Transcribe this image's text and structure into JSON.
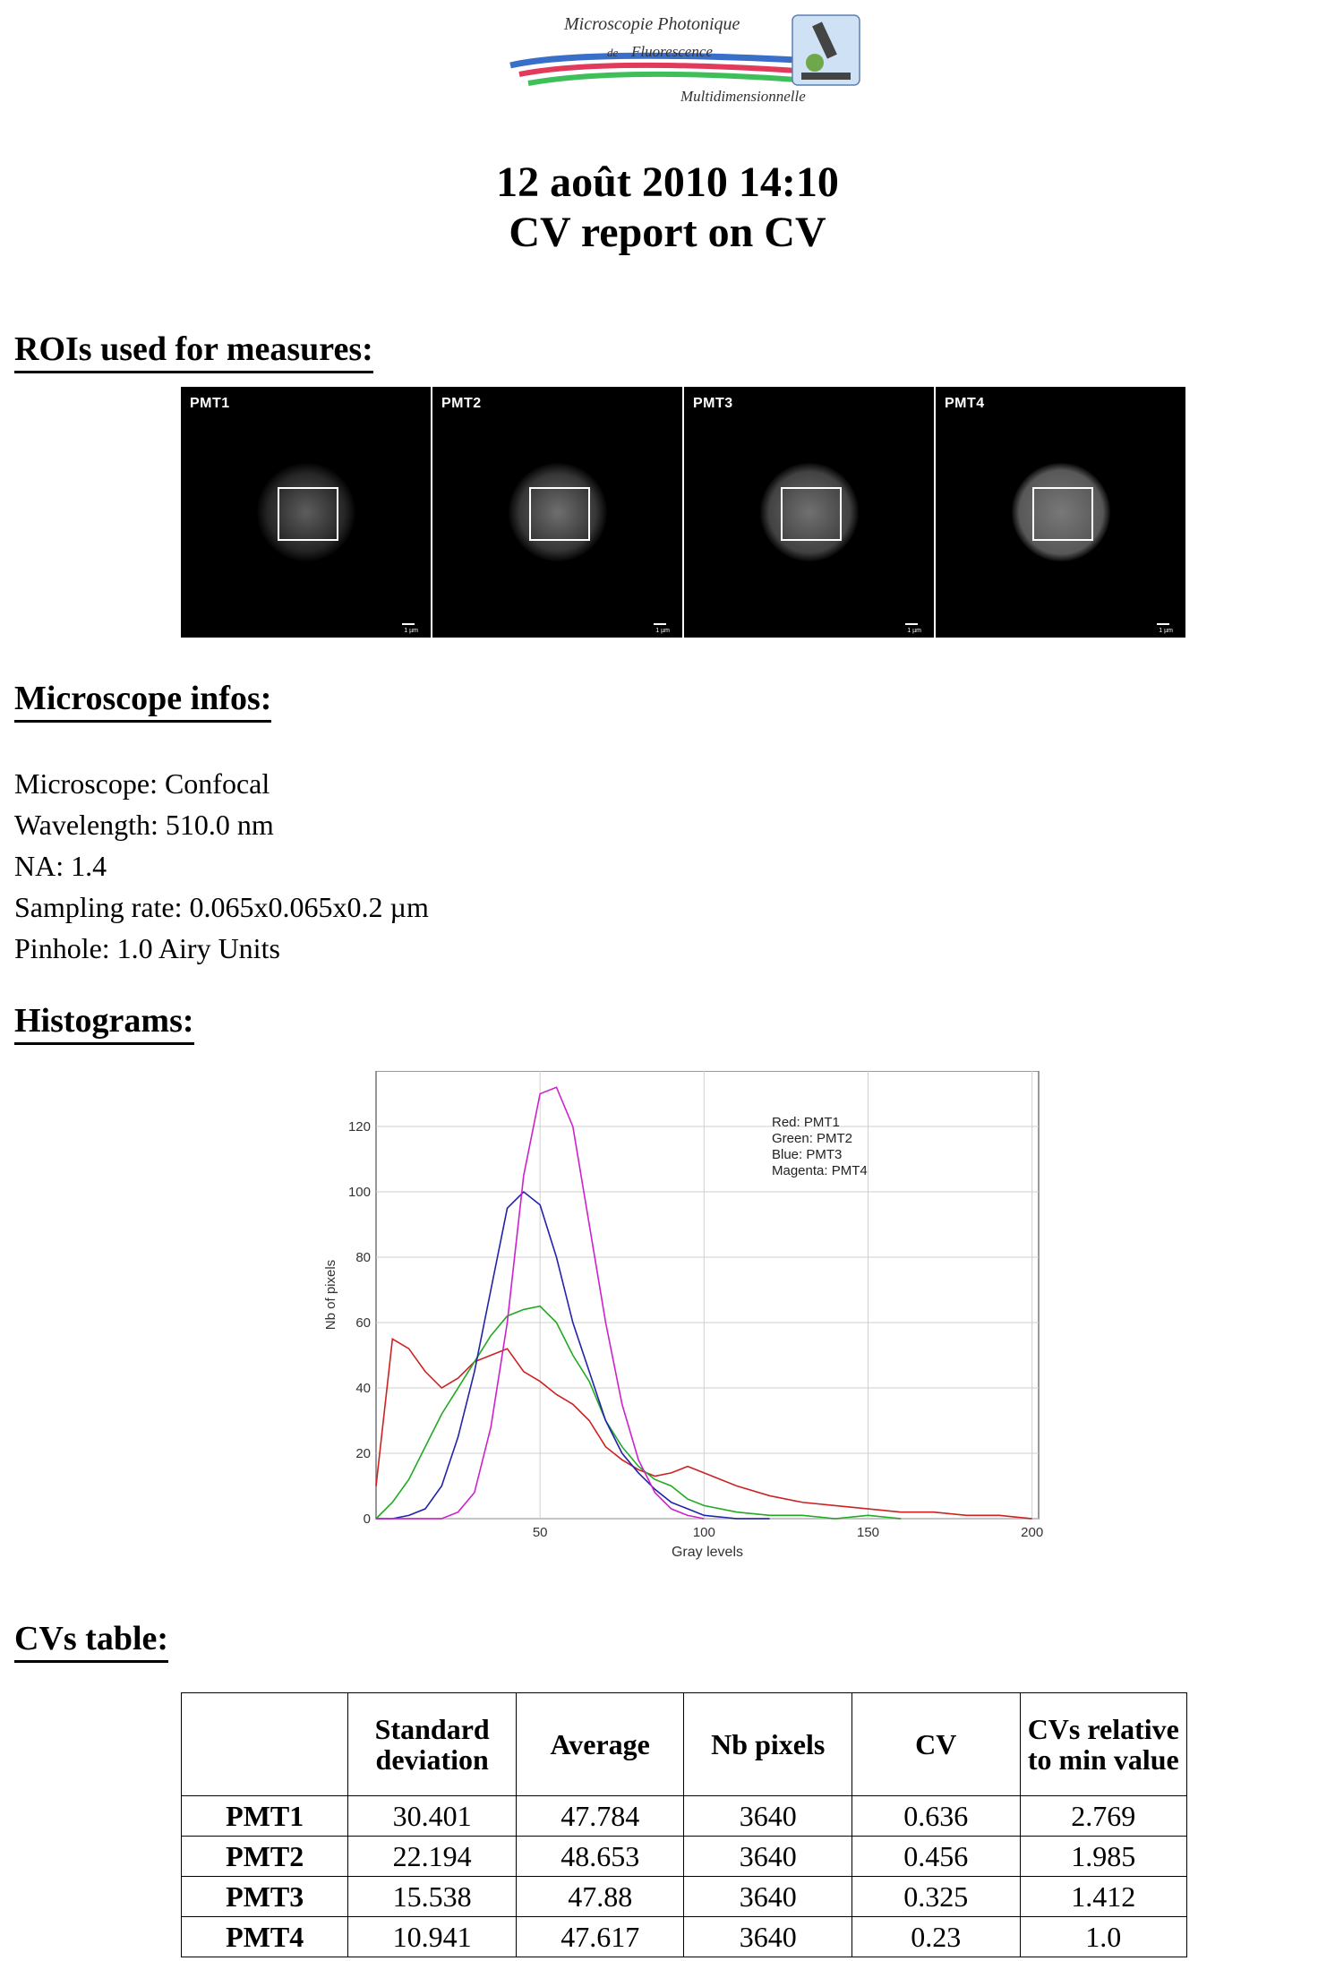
{
  "logo": {
    "line1": "Microscopie Photonique",
    "line2_prefix": "de",
    "line2": "Fluorescence",
    "line3": "Multidimensionnelle",
    "icon": "microscope-icon"
  },
  "header": {
    "date": "12 août 2010 14:10",
    "report_title": "CV report on CV"
  },
  "rois": {
    "heading": "ROIs used for measures:",
    "scale_label": "1 µm",
    "panels": [
      {
        "label": "PMT1"
      },
      {
        "label": "PMT2"
      },
      {
        "label": "PMT3"
      },
      {
        "label": "PMT4"
      }
    ]
  },
  "microscope": {
    "heading": "Microscope infos:",
    "lines": [
      "Microscope: Confocal",
      "Wavelength: 510.0 nm",
      "NA: 1.4",
      "Sampling rate: 0.065x0.065x0.2 µm",
      "Pinhole: 1.0 Airy Units"
    ]
  },
  "histograms": {
    "heading": "Histograms:"
  },
  "chart_data": {
    "type": "line",
    "title": "",
    "xlabel": "Gray levels",
    "ylabel": "Nb of pixels",
    "xlim": [
      0,
      202
    ],
    "ylim": [
      0,
      137
    ],
    "xticks": [
      50,
      100,
      150,
      200
    ],
    "yticks": [
      0,
      20,
      40,
      60,
      80,
      100,
      120
    ],
    "grid": true,
    "legend_position": "top-right",
    "legend": [
      "Red: PMT1",
      "Green: PMT2",
      "Blue: PMT3",
      "Magenta: PMT4"
    ],
    "series": [
      {
        "name": "PMT1",
        "color": "#cc2222",
        "x": [
          0,
          5,
          10,
          15,
          20,
          25,
          30,
          35,
          40,
          45,
          50,
          55,
          60,
          65,
          70,
          75,
          80,
          85,
          90,
          95,
          100,
          110,
          120,
          130,
          140,
          150,
          160,
          170,
          180,
          190,
          200
        ],
        "y": [
          10,
          55,
          52,
          45,
          40,
          43,
          48,
          50,
          52,
          45,
          42,
          38,
          35,
          30,
          22,
          18,
          15,
          13,
          14,
          16,
          14,
          10,
          7,
          5,
          4,
          3,
          2,
          2,
          1,
          1,
          0
        ]
      },
      {
        "name": "PMT2",
        "color": "#22aa22",
        "x": [
          0,
          5,
          10,
          15,
          20,
          25,
          30,
          35,
          40,
          45,
          50,
          55,
          60,
          65,
          70,
          75,
          80,
          85,
          90,
          95,
          100,
          110,
          120,
          130,
          140,
          150,
          160
        ],
        "y": [
          0,
          5,
          12,
          22,
          32,
          40,
          48,
          56,
          62,
          64,
          65,
          60,
          50,
          42,
          30,
          22,
          16,
          12,
          10,
          6,
          4,
          2,
          1,
          1,
          0,
          1,
          0
        ]
      },
      {
        "name": "PMT3",
        "color": "#2222aa",
        "x": [
          0,
          5,
          10,
          15,
          20,
          25,
          30,
          35,
          40,
          45,
          50,
          55,
          60,
          65,
          70,
          75,
          80,
          85,
          90,
          95,
          100,
          110,
          120
        ],
        "y": [
          0,
          0,
          1,
          3,
          10,
          25,
          45,
          70,
          95,
          100,
          96,
          80,
          60,
          45,
          30,
          20,
          14,
          9,
          5,
          3,
          1,
          0,
          0
        ]
      },
      {
        "name": "PMT4",
        "color": "#cc22cc",
        "x": [
          0,
          5,
          10,
          15,
          20,
          25,
          30,
          35,
          40,
          45,
          50,
          55,
          60,
          65,
          70,
          75,
          80,
          85,
          90,
          95,
          100
        ],
        "y": [
          0,
          0,
          0,
          0,
          0,
          2,
          8,
          28,
          60,
          105,
          130,
          132,
          120,
          90,
          60,
          35,
          18,
          8,
          3,
          1,
          0
        ]
      }
    ]
  },
  "cv_table": {
    "heading": "CVs table:",
    "columns": [
      "",
      "Standard deviation",
      "Average",
      "Nb pixels",
      "CV",
      "CVs relative to min value"
    ],
    "rows": [
      {
        "name": "PMT1",
        "std": "30.401",
        "avg": "47.784",
        "nb": "3640",
        "cv": "0.636",
        "rel": "2.769"
      },
      {
        "name": "PMT2",
        "std": "22.194",
        "avg": "48.653",
        "nb": "3640",
        "cv": "0.456",
        "rel": "1.985"
      },
      {
        "name": "PMT3",
        "std": "15.538",
        "avg": "47.88",
        "nb": "3640",
        "cv": "0.325",
        "rel": "1.412"
      },
      {
        "name": "PMT4",
        "std": "10.941",
        "avg": "47.617",
        "nb": "3640",
        "cv": "0.23",
        "rel": "1.0"
      }
    ]
  }
}
